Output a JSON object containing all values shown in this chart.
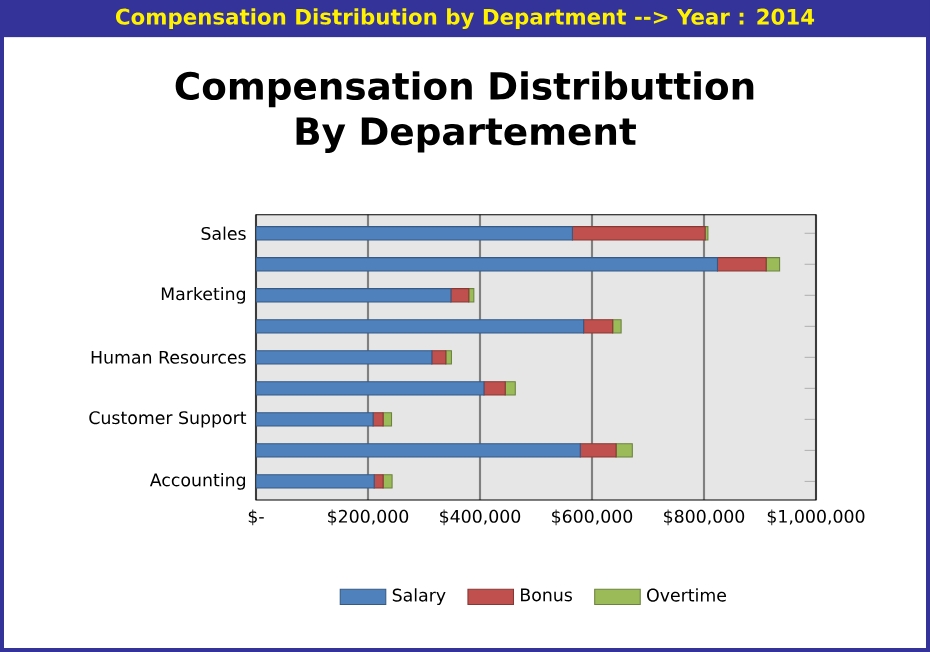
{
  "chart_data": {
    "type": "bar",
    "orientation": "horizontal",
    "stacked": true,
    "title": "Compensation Distribution by Department --> Year : 2014",
    "subtitle": "Compensation Distributtion By Departement",
    "categories": [
      "Sales",
      null,
      "Marketing",
      null,
      "Human Resources",
      null,
      "Customer Support",
      null,
      "Accounting"
    ],
    "series": [
      {
        "name": "Salary",
        "color": "#4f81bd",
        "values": [
          565000,
          824000,
          348000,
          585000,
          314000,
          407000,
          209000,
          579000,
          211000
        ]
      },
      {
        "name": "Bonus",
        "color": "#c0504d",
        "values": [
          237000,
          87000,
          32000,
          52000,
          25000,
          38000,
          18000,
          64000,
          16000
        ]
      },
      {
        "name": "Overtime",
        "color": "#9bbb59",
        "values": [
          5000,
          24000,
          9000,
          15000,
          10000,
          18000,
          15000,
          29000,
          16000
        ]
      }
    ],
    "xlim": [
      0,
      1000000
    ],
    "xticks": [
      {
        "value": 0,
        "label": "$-"
      },
      {
        "value": 200000,
        "label": "$200,000"
      },
      {
        "value": 400000,
        "label": "$400,000"
      },
      {
        "value": 600000,
        "label": "$600,000"
      },
      {
        "value": 800000,
        "label": "$800,000"
      },
      {
        "value": 1000000,
        "label": "$1,000,000"
      }
    ],
    "grid": "x",
    "legend": "bottom"
  }
}
